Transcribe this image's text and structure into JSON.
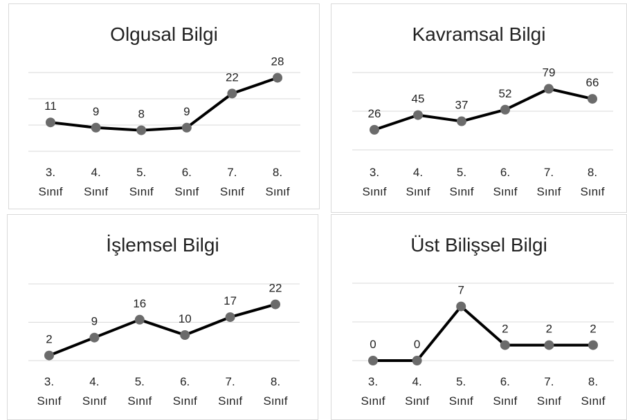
{
  "chart_data": [
    {
      "type": "line",
      "title": "Olgusal Bilgi",
      "categories": [
        "3. Sınıf",
        "4. Sınıf",
        "5. Sınıf",
        "6. Sınıf",
        "7. Sınıf",
        "8. Sınıf"
      ],
      "values": [
        11,
        9,
        8,
        9,
        22,
        28
      ],
      "color": "#000000",
      "marker_color": "#6b6b6b",
      "ylim": [
        0,
        30
      ],
      "yticks": [
        0,
        10,
        20,
        30
      ],
      "grid": true
    },
    {
      "type": "line",
      "title": "Kavramsal Bilgi",
      "categories": [
        "3. Sınıf",
        "4. Sınıf",
        "5. Sınıf",
        "6. Sınıf",
        "7. Sınıf",
        "8. Sınıf"
      ],
      "values": [
        26,
        45,
        37,
        52,
        79,
        66
      ],
      "color": "#000000",
      "marker_color": "#6b6b6b",
      "ylim": [
        0,
        100
      ],
      "yticks": [
        0,
        50,
        100
      ],
      "grid": true
    },
    {
      "type": "line",
      "title": "İşlemsel Bilgi",
      "categories": [
        "3. Sınıf",
        "4. Sınıf",
        "5. Sınıf",
        "6. Sınıf",
        "7. Sınıf",
        "8. Sınıf"
      ],
      "values": [
        2,
        9,
        16,
        10,
        17,
        22
      ],
      "color": "#000000",
      "marker_color": "#6b6b6b",
      "ylim": [
        0,
        30
      ],
      "yticks": [
        0,
        15,
        30
      ],
      "grid": true
    },
    {
      "type": "line",
      "title": "Üst Bilişsel Bilgi",
      "categories": [
        "3. Sınıf",
        "4. Sınıf",
        "5. Sınıf",
        "6. Sınıf",
        "7. Sınıf",
        "8. Sınıf"
      ],
      "values": [
        0,
        0,
        7,
        2,
        2,
        2
      ],
      "color": "#000000",
      "marker_color": "#6b6b6b",
      "ylim": [
        0,
        10
      ],
      "yticks": [
        0,
        5,
        10
      ],
      "grid": true
    }
  ]
}
